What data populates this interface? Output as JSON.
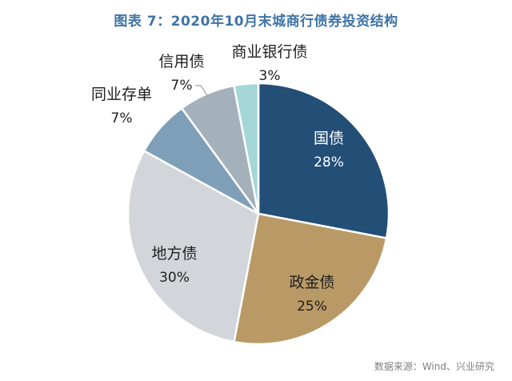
{
  "chart_data": {
    "type": "pie",
    "title": "图表 7：2020年10月末城商行债券投资结构",
    "slices": [
      {
        "name": "国债",
        "value": 28,
        "label": "28%",
        "color": "#234e76"
      },
      {
        "name": "政金债",
        "value": 25,
        "label": "25%",
        "color": "#b99a66"
      },
      {
        "name": "地方债",
        "value": 30,
        "label": "30%",
        "color": "#d2d5d9"
      },
      {
        "name": "同业存单",
        "value": 7,
        "label": "7%",
        "color": "#7f9fb8"
      },
      {
        "name": "信用债",
        "value": 7,
        "label": "7%",
        "color": "#a4b0ba"
      },
      {
        "name": "商业银行债",
        "value": 3,
        "label": "3%",
        "color": "#a5d6d8"
      }
    ]
  },
  "source": "数据来源：Wind、兴业研究"
}
